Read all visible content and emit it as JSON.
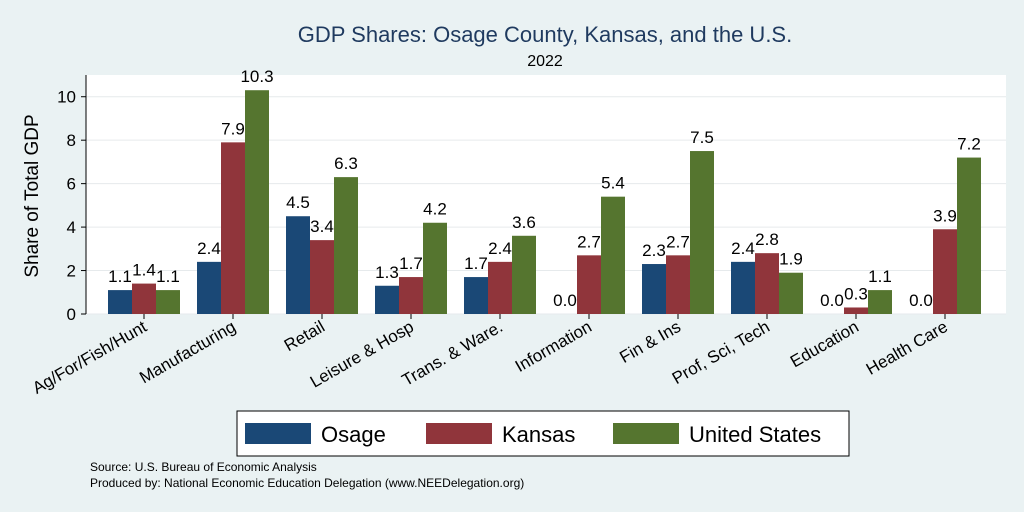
{
  "title": "GDP Shares: Osage County, Kansas, and the U.S.",
  "subtitle": "2022",
  "notes": {
    "source": "Source: U.S. Bureau of Economic Analysis",
    "produced_by": "Produced by: National Economic Education Delegation (www.NEEDelegation.org)"
  },
  "chart_data": {
    "type": "bar",
    "title": "GDP Shares: Osage County, Kansas, and the U.S.",
    "subtitle": "2022",
    "xlabel": "",
    "ylabel": "Share of Total GDP",
    "ylim": [
      0,
      11
    ],
    "yticks": [
      0,
      2,
      4,
      6,
      8,
      10
    ],
    "grid": true,
    "legend_position": "bottom",
    "categories": [
      "Ag/For/Fish/Hunt",
      "Manufacturing",
      "Retail",
      "Leisure & Hosp",
      "Trans. & Ware.",
      "Information",
      "Fin & Ins",
      "Prof, Sci, Tech",
      "Education",
      "Health Care"
    ],
    "series": [
      {
        "name": "Osage",
        "color": "#1a4876",
        "values": [
          1.1,
          2.4,
          4.5,
          1.3,
          1.7,
          0.0,
          2.3,
          2.4,
          0.0,
          0.0
        ]
      },
      {
        "name": "Kansas",
        "color": "#90353b",
        "values": [
          1.4,
          7.9,
          3.4,
          1.7,
          2.4,
          2.7,
          2.7,
          2.8,
          0.3,
          3.9
        ]
      },
      {
        "name": "United States",
        "color": "#55752f",
        "values": [
          1.1,
          10.3,
          6.3,
          4.2,
          3.6,
          5.4,
          7.5,
          1.9,
          1.1,
          7.2
        ]
      }
    ]
  }
}
